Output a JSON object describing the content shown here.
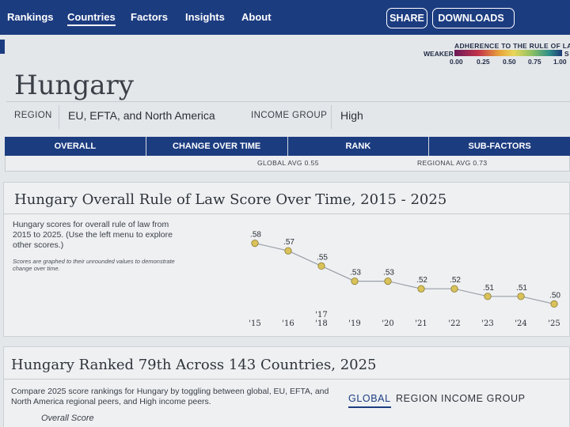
{
  "nav": {
    "links": [
      "Rankings",
      "Countries",
      "Factors",
      "Insights",
      "About"
    ],
    "share_label": "SHARE",
    "downloads_label": "DOWNLOADS"
  },
  "legend": {
    "title": "ADHERENCE TO THE RULE OF LAW",
    "weaker": "WEAKER",
    "stronger": "S",
    "ticks": [
      "0.00",
      "0.25",
      "0.50",
      "0.75",
      "1.00"
    ]
  },
  "country": {
    "name": "Hungary",
    "region_label": "REGION",
    "region_value": "EU, EFTA, and North America",
    "income_label": "INCOME GROUP",
    "income_value": "High"
  },
  "tabs": [
    "OVERALL",
    "CHANGE OVER TIME",
    "RANK",
    "SUB-FACTORS"
  ],
  "averages": {
    "global": "GLOBAL AVG 0.55",
    "regional": "REGIONAL AVG 0.73"
  },
  "over_time": {
    "title": "Hungary Overall Rule of Law Score Over Time, 2015 - 2025",
    "description": [
      "Hungary scores for overall rule of law from",
      "2015 to 2025. (Use the left menu to explore",
      "other scores.)"
    ],
    "note": [
      "Scores are graphed to their unrounded values to demonstrate",
      "change over time."
    ]
  },
  "chart_data": {
    "type": "line",
    "title": "Hungary Overall Rule of Law Score Over Time, 2015 - 2025",
    "x": [
      "'15",
      "'16",
      "'17\n'18",
      "'19",
      "'20",
      "'21",
      "'22",
      "'23",
      "'24",
      "'25"
    ],
    "values": [
      0.58,
      0.57,
      0.55,
      0.53,
      0.53,
      0.52,
      0.52,
      0.51,
      0.51,
      0.5
    ],
    "labels": [
      ".58",
      ".57",
      ".55",
      ".53",
      ".53",
      ".52",
      ".52",
      ".51",
      ".51",
      ".50"
    ],
    "ylim": [
      0.49,
      0.59
    ],
    "grid": false,
    "point_color": "#d9c25a",
    "line_color": "#9aa0a8"
  },
  "ranking": {
    "title": "Hungary Ranked 79th Across 143 Countries, 2025",
    "description": [
      "Compare 2025 score rankings for Hungary by toggling between global, EU, EFTA, and",
      "North America regional peers, and High income peers."
    ],
    "toggles": [
      "GLOBAL",
      "REGION",
      "INCOME GROUP"
    ],
    "overall_score_label": "Overall Score"
  },
  "colors": {
    "nav_bg": "#1c3c80",
    "accent": "#1c3c80"
  }
}
